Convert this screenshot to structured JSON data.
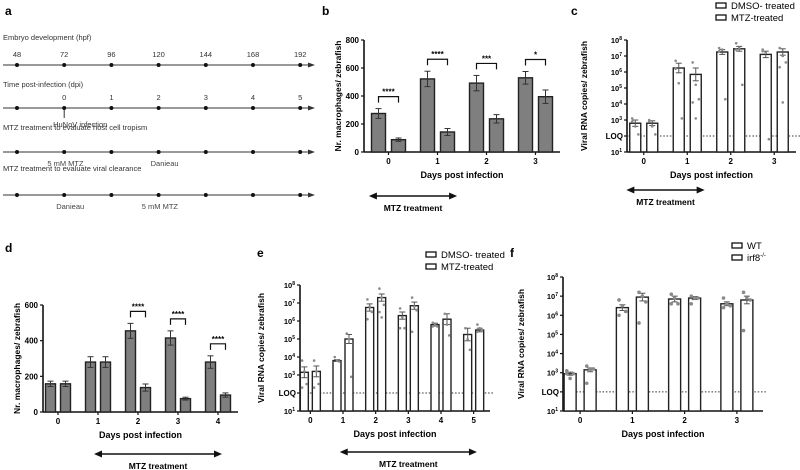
{
  "panel_labels": [
    "a",
    "b",
    "c",
    "d",
    "e",
    "f"
  ],
  "panel_a": {
    "timelines": [
      {
        "title": "Embryo development (hpf)",
        "tick_labels": [
          "48",
          "72",
          "96",
          "120",
          "144",
          "168",
          "192"
        ],
        "annotations": []
      },
      {
        "title": "Time post-infection (dpi)",
        "tick_labels": [
          "",
          "0",
          "1",
          "2",
          "3",
          "4",
          "5"
        ],
        "annotations": [
          {
            "text": "HuNoV infection",
            "at_index": 1,
            "arrow": true
          }
        ]
      },
      {
        "title": "MTZ treatment to evaluate host cell tropism",
        "tick_labels": [],
        "annotations": [
          {
            "text": "5 mM MTZ",
            "at_index": 0.9
          },
          {
            "text": "Danieau",
            "at_index": 3
          }
        ]
      },
      {
        "title": "MTZ treatment to evaluate viral clearance",
        "tick_labels": [],
        "annotations": [
          {
            "text": "Danieau",
            "at_index": 1
          },
          {
            "text": "5 mM MTZ",
            "at_index": 2.9
          }
        ]
      }
    ]
  },
  "chart_data": [
    {
      "id": "b",
      "type": "bar",
      "ylabel": "Nr. macrophages/ zebrafish",
      "xlabel": "Days post infection",
      "categories": [
        "0",
        "1",
        "2",
        "3"
      ],
      "ylim": [
        0,
        800
      ],
      "yticks": [
        0,
        200,
        400,
        600,
        800
      ],
      "series": [
        {
          "name": "DMSO",
          "values": [
            275,
            522,
            492,
            530
          ],
          "errors": [
            35,
            55,
            55,
            45
          ]
        },
        {
          "name": "MTZ",
          "values": [
            88,
            143,
            237,
            395
          ],
          "errors": [
            12,
            25,
            30,
            48
          ]
        }
      ],
      "significance": [
        "****",
        "****",
        "***",
        "*"
      ],
      "treatment_arrow": {
        "label": "MTZ treatment",
        "from": -0.4,
        "to": 1.4
      }
    },
    {
      "id": "c",
      "type": "bar",
      "scale": "log",
      "ylabel": "Viral  RNA copies/ zebrafish",
      "xlabel": "Days post infection",
      "categories": [
        "0",
        "1",
        "2",
        "3"
      ],
      "ylim_exp": [
        1,
        8
      ],
      "loq_exp": 2,
      "series": [
        {
          "name": "DMSO- treated",
          "values_exp": [
            2.8,
            6.25,
            7.25,
            7.1
          ],
          "err_exp": [
            0.2,
            0.3,
            0.15,
            0.2
          ],
          "points_exp": [
            [
              3.1,
              2.6,
              2.1,
              2.9
            ],
            [
              6.7,
              5.3,
              3.1,
              6.2
            ],
            [
              7.5,
              7.4,
              4.3,
              7.3
            ],
            [
              7.4,
              7.2,
              1.8,
              7.3
            ]
          ]
        },
        {
          "name": "MTZ-treated",
          "values_exp": [
            2.8,
            5.85,
            7.45,
            7.25
          ],
          "err_exp": [
            0.15,
            0.4,
            0.15,
            0.2
          ],
          "points_exp": [
            [
              3.0,
              2.6,
              2.1,
              2.9
            ],
            [
              6.6,
              5.2,
              4.3,
              4.1,
              3.1
            ],
            [
              7.8,
              7.5,
              5.2,
              7.4
            ],
            [
              7.5,
              7.0,
              6.6,
              6.3,
              4.1
            ]
          ]
        }
      ],
      "legend": [
        "DMSO- treated",
        "MTZ-treated"
      ],
      "treatment_arrow": {
        "label": "MTZ treatment",
        "from": -0.4,
        "to": 1.4
      }
    },
    {
      "id": "d",
      "type": "bar",
      "ylabel": "Nr. macrophages/ zebrafish",
      "xlabel": "Days post infection",
      "categories": [
        "0",
        "1",
        "2",
        "3",
        "4"
      ],
      "ylim": [
        0,
        600
      ],
      "yticks": [
        0,
        200,
        400,
        600
      ],
      "series": [
        {
          "name": "DMSO",
          "values": [
            158,
            280,
            455,
            415,
            280
          ],
          "errors": [
            15,
            30,
            42,
            40,
            35
          ]
        },
        {
          "name": "MTZ",
          "values": [
            158,
            280,
            137,
            75,
            95
          ],
          "errors": [
            15,
            30,
            20,
            8,
            12
          ]
        }
      ],
      "significance": [
        "",
        "",
        "****",
        "****",
        "****"
      ],
      "treatment_arrow": {
        "label": "MTZ treatment",
        "from": 0.9,
        "to": 4.1
      }
    },
    {
      "id": "e",
      "type": "bar",
      "scale": "log",
      "ylabel": "Viral  RNA copies/ zebrafish",
      "xlabel": "Days post infection",
      "categories": [
        "0",
        "1",
        "2",
        "3",
        "4",
        "5"
      ],
      "ylim_exp": [
        1,
        8
      ],
      "loq_exp": 2,
      "series": [
        {
          "name": "DMSO- treated",
          "values_exp": [
            3.15,
            3.8,
            6.75,
            6.3,
            5.8,
            5.25
          ],
          "err_exp": [
            0.3,
            0.05,
            0.2,
            0.2,
            0.08,
            0.35
          ],
          "points_exp": [
            [
              3.8,
              3.2,
              2.5,
              2.3
            ],
            [
              4.0,
              3.8,
              3.75
            ],
            [
              7.2,
              6.8,
              6.5,
              6.1
            ],
            [
              6.7,
              6.2,
              5.6,
              5.6
            ],
            [
              5.9,
              5.8,
              5.7,
              5.7
            ],
            [
              5.6,
              5.0,
              4.4
            ]
          ]
        },
        {
          "name": "MTZ-treated",
          "values_exp": [
            3.2,
            5.0,
            7.3,
            6.85,
            6.1,
            5.5
          ],
          "err_exp": [
            0.3,
            0.25,
            0.2,
            0.2,
            0.3,
            0.1
          ],
          "points_exp": [
            [
              3.8,
              3.2,
              2.5,
              2.3
            ],
            [
              5.3,
              5.0,
              2.9
            ],
            [
              7.8,
              7.3,
              6.9,
              6.5,
              6.2
            ],
            [
              7.3,
              6.8,
              6.6,
              5.4
            ],
            [
              6.4,
              5.8,
              5.2
            ],
            [
              5.8,
              5.6,
              5.5,
              5.4
            ]
          ]
        }
      ],
      "legend": [
        "DMSO- treated",
        "MTZ-treated"
      ],
      "treatment_arrow": {
        "label": "MTZ treatment",
        "from": 0.9,
        "to": 5.1
      }
    },
    {
      "id": "f",
      "type": "bar",
      "scale": "log",
      "ylabel": "Viral  RNA copies/ zebrafish",
      "xlabel": "Days post infection",
      "categories": [
        "0",
        "1",
        "2",
        "3"
      ],
      "ylim_exp": [
        1,
        8
      ],
      "loq_exp": 2,
      "series": [
        {
          "name": "WT",
          "values_exp": [
            2.95,
            6.4,
            6.85,
            6.6
          ],
          "err_exp": [
            0.08,
            0.15,
            0.15,
            0.1
          ],
          "points_exp": [
            [
              3.1,
              2.7,
              2.95,
              2.95
            ],
            [
              6.8,
              6.5,
              6.2,
              6.0
            ],
            [
              7.1,
              6.9,
              6.6,
              6.6
            ],
            [
              6.9,
              6.6,
              6.5,
              6.4
            ]
          ]
        },
        {
          "name": "irf8-/-",
          "values_exp": [
            3.15,
            6.95,
            6.9,
            6.8
          ],
          "err_exp": [
            0.1,
            0.2,
            0.08,
            0.2
          ],
          "points_exp": [
            [
              3.35,
              3.2,
              3.2,
              2.45
            ],
            [
              7.2,
              7.0,
              6.7,
              5.6
            ],
            [
              7.0,
              6.9,
              6.9,
              6.6
            ],
            [
              7.2,
              6.9,
              6.8,
              5.2
            ]
          ]
        }
      ],
      "legend": [
        "WT",
        "irf8"
      ],
      "legend_sup": [
        "",
        "-/-"
      ]
    }
  ],
  "common": {
    "loq_label": "LOQ",
    "log_base": "10"
  },
  "colors": {
    "bar_fill_dark": "#7f7f7f",
    "bar_stroke": "#222222",
    "open_bar_fill": "#ffffff",
    "dot": "#8a8a8a"
  }
}
